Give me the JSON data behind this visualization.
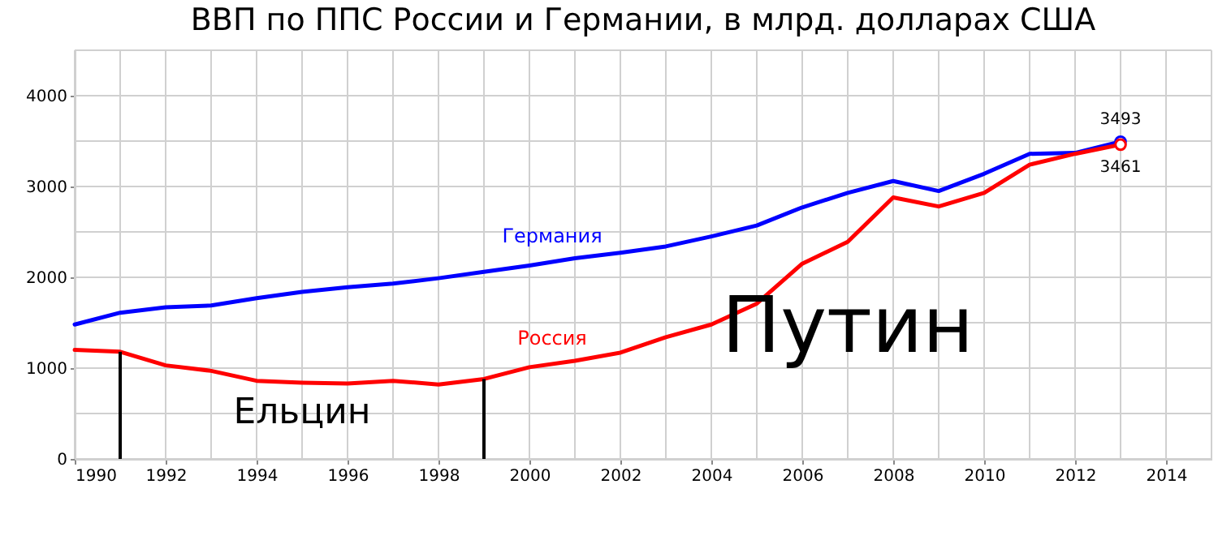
{
  "chart_data": {
    "type": "line",
    "title": "ВВП по ППС России и Германии, в млрд. долларах США",
    "x": [
      1990,
      1991,
      1992,
      1993,
      1994,
      1995,
      1996,
      1997,
      1998,
      1999,
      2000,
      2001,
      2002,
      2003,
      2004,
      2005,
      2006,
      2007,
      2008,
      2009,
      2010,
      2011,
      2012,
      2013
    ],
    "series": [
      {
        "name": "Германия",
        "color": "#0000ff",
        "values": [
          1480,
          1610,
          1670,
          1690,
          1770,
          1840,
          1890,
          1930,
          1990,
          2060,
          2130,
          2210,
          2270,
          2340,
          2450,
          2570,
          2770,
          2930,
          3060,
          2950,
          3140,
          3360,
          3370,
          3493
        ],
        "value_labels": [
          null,
          null,
          null,
          null,
          null,
          null,
          null,
          null,
          null,
          null,
          null,
          null,
          null,
          null,
          null,
          null,
          null,
          null,
          null,
          null,
          null,
          null,
          null,
          "3493"
        ]
      },
      {
        "name": "Россия",
        "color": "#ff0000",
        "values": [
          1200,
          1180,
          1030,
          970,
          860,
          840,
          830,
          860,
          820,
          880,
          1010,
          1080,
          1170,
          1340,
          1480,
          1710,
          2150,
          2390,
          2880,
          2780,
          2930,
          3240,
          3360,
          3461
        ],
        "value_labels": [
          null,
          null,
          null,
          null,
          null,
          null,
          null,
          null,
          null,
          null,
          null,
          null,
          null,
          null,
          null,
          null,
          null,
          null,
          null,
          null,
          null,
          null,
          null,
          "3461"
        ]
      }
    ],
    "xlim": [
      1990,
      2015
    ],
    "xticks": [
      1990,
      {
        "value": 1991,
        "label": null
      },
      1992,
      {
        "value": 1993,
        "label": null
      },
      1994,
      {
        "value": 1995,
        "label": null
      },
      1996,
      {
        "value": 1997,
        "label": null
      },
      1998,
      {
        "value": 1999,
        "label": null
      },
      2000,
      {
        "value": 2001,
        "label": null
      },
      2002,
      {
        "value": 2003,
        "label": null
      },
      2004,
      {
        "value": 2005,
        "label": null
      },
      2006,
      {
        "value": 2007,
        "label": null
      },
      2008,
      {
        "value": 2009,
        "label": null
      },
      2010,
      {
        "value": 2011,
        "label": null
      },
      2012,
      {
        "value": 2013,
        "label": null
      },
      2014,
      {
        "value": 2015,
        "label": null
      }
    ],
    "ylim": [
      0,
      4500
    ],
    "yticks": [
      0,
      {
        "value": 500,
        "label": null
      },
      1000,
      {
        "value": 1500,
        "label": null
      },
      2000,
      {
        "value": 2500,
        "label": null
      },
      3000,
      {
        "value": 3500,
        "label": null
      },
      4000,
      {
        "value": 4500,
        "label": null
      }
    ],
    "grid": true,
    "ref_lines": [
      {
        "axis": "x",
        "value": 1991,
        "color": "#000000"
      },
      {
        "axis": "x",
        "value": 1999,
        "color": "#000000"
      }
    ],
    "annotations": [
      "Ельцин",
      "Путин"
    ]
  }
}
